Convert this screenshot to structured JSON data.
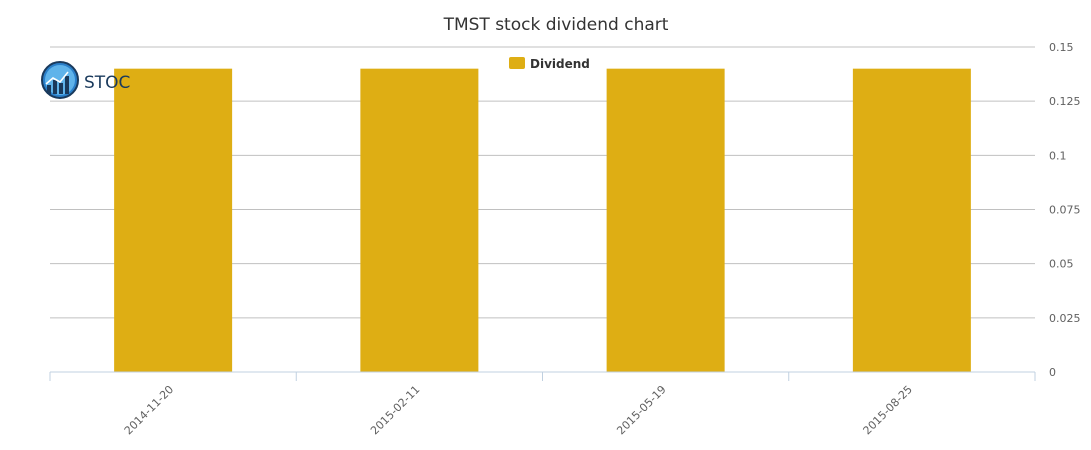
{
  "chart_data": {
    "type": "bar",
    "title": "TMST stock dividend chart",
    "categories": [
      "2014-11-20",
      "2015-02-11",
      "2015-05-19",
      "2015-08-25"
    ],
    "series": [
      {
        "name": "Dividend",
        "values": [
          0.14,
          0.14,
          0.14,
          0.14
        ],
        "color": "#DEAE14"
      }
    ],
    "ylim": [
      0,
      0.15
    ],
    "yticks": [
      "0",
      "0.025",
      "0.05",
      "0.075",
      "0.1",
      "0.125",
      "0.15"
    ],
    "y_axis_side": "right",
    "grid": true,
    "legend_position": "top-center",
    "xlabel": "",
    "ylabel": ""
  },
  "logo": {
    "text": "STOC"
  },
  "colors": {
    "grid": "#C0C0C0",
    "axis": "#C0D0E0",
    "logo_blue": "#1a3a5c"
  }
}
